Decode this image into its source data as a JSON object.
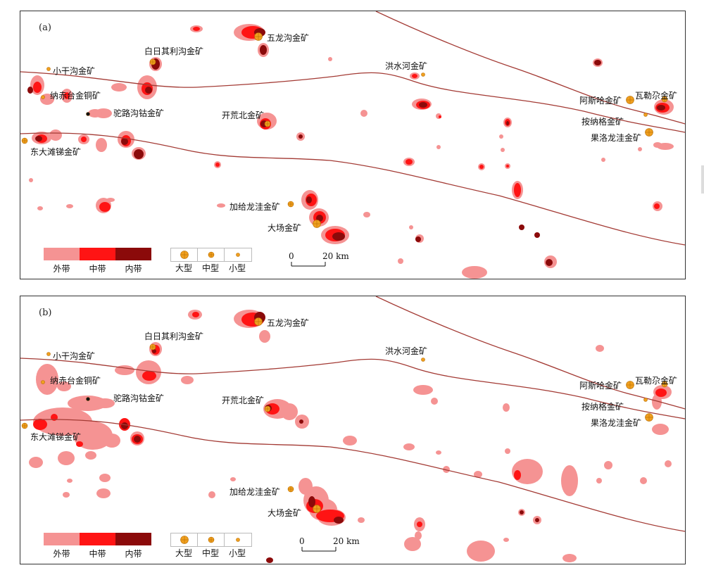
{
  "colors": {
    "outer": "#f59393",
    "middle": "#ff1414",
    "inner": "#8b0a0a",
    "fault": "#a33a34",
    "deposit": "#f0a020",
    "depositStroke": "#b86d00"
  },
  "panels": [
    {
      "id": "a",
      "label": "(a)"
    },
    {
      "id": "b",
      "label": "(b)"
    }
  ],
  "deposits": [
    {
      "name": "五龙沟金矿",
      "size": "large"
    },
    {
      "name": "白日其利沟金矿",
      "size": "medium"
    },
    {
      "name": "小干沟金矿",
      "size": "small"
    },
    {
      "name": "纳赤台金铜矿",
      "size": "small"
    },
    {
      "name": "驼路沟钴金矿",
      "size": "small"
    },
    {
      "name": "东大滩锑金矿",
      "size": "medium"
    },
    {
      "name": "开荒北金矿",
      "size": "medium"
    },
    {
      "name": "洪水河金矿",
      "size": "small"
    },
    {
      "name": "阿斯哈金矿",
      "size": "large"
    },
    {
      "name": "瓦勒尕金矿",
      "size": "medium"
    },
    {
      "name": "按纳格金矿",
      "size": "small"
    },
    {
      "name": "果洛龙洼金矿",
      "size": "large"
    },
    {
      "name": "加给龙洼金矿",
      "size": "medium"
    },
    {
      "name": "大场金矿",
      "size": "large"
    }
  ],
  "legend": {
    "zones": [
      "外带",
      "中带",
      "内带"
    ],
    "sizes": [
      "大型",
      "中型",
      "小型"
    ]
  },
  "scale": {
    "start": "0",
    "end": "20 km"
  }
}
